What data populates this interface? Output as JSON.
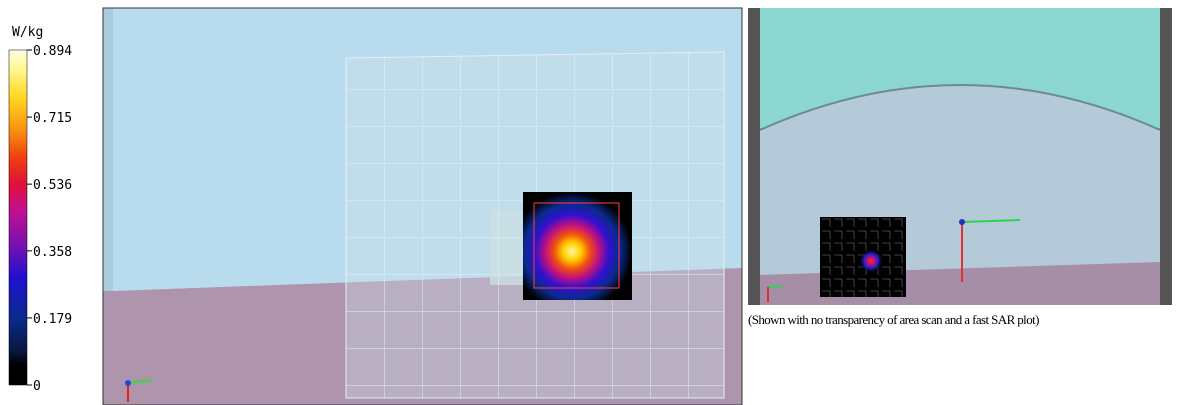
{
  "colorbar": {
    "unit": "W/kg",
    "ticks": [
      0.894,
      0.715,
      0.536,
      0.358,
      0.179,
      0
    ]
  },
  "caption": "(Shown with no transparency of area scan and a fast SAR plot)"
}
